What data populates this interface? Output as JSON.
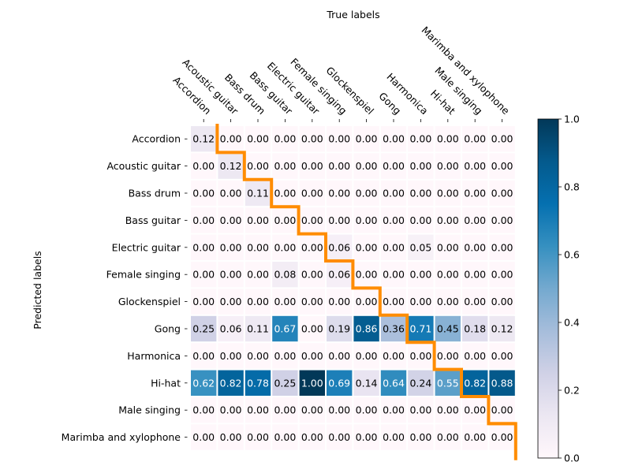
{
  "chart_data": {
    "type": "heatmap",
    "title": "True labels",
    "ylabel": "Predicted labels",
    "xlabel": "",
    "x_categories": [
      "Accordion",
      "Acoustic guitar",
      "Bass drum",
      "Bass guitar",
      "Electric guitar",
      "Female singing",
      "Glockenspiel",
      "Gong",
      "Harmonica",
      "Hi-hat",
      "Male singing",
      "Marimba and xylophone"
    ],
    "y_categories": [
      "Accordion",
      "Acoustic guitar",
      "Bass drum",
      "Bass guitar",
      "Electric guitar",
      "Female singing",
      "Glockenspiel",
      "Gong",
      "Harmonica",
      "Hi-hat",
      "Male singing",
      "Marimba and xylophone"
    ],
    "values": [
      [
        0.12,
        0.0,
        0.0,
        0.0,
        0.0,
        0.0,
        0.0,
        0.0,
        0.0,
        0.0,
        0.0,
        0.0
      ],
      [
        0.0,
        0.12,
        0.0,
        0.0,
        0.0,
        0.0,
        0.0,
        0.0,
        0.0,
        0.0,
        0.0,
        0.0
      ],
      [
        0.0,
        0.0,
        0.11,
        0.0,
        0.0,
        0.0,
        0.0,
        0.0,
        0.0,
        0.0,
        0.0,
        0.0
      ],
      [
        0.0,
        0.0,
        0.0,
        0.0,
        0.0,
        0.0,
        0.0,
        0.0,
        0.0,
        0.0,
        0.0,
        0.0
      ],
      [
        0.0,
        0.0,
        0.0,
        0.0,
        0.0,
        0.06,
        0.0,
        0.0,
        0.05,
        0.0,
        0.0,
        0.0
      ],
      [
        0.0,
        0.0,
        0.0,
        0.08,
        0.0,
        0.06,
        0.0,
        0.0,
        0.0,
        0.0,
        0.0,
        0.0
      ],
      [
        0.0,
        0.0,
        0.0,
        0.0,
        0.0,
        0.0,
        0.0,
        0.0,
        0.0,
        0.0,
        0.0,
        0.0
      ],
      [
        0.25,
        0.06,
        0.11,
        0.67,
        0.0,
        0.19,
        0.86,
        0.36,
        0.71,
        0.45,
        0.18,
        0.12
      ],
      [
        0.0,
        0.0,
        0.0,
        0.0,
        0.0,
        0.0,
        0.0,
        0.0,
        0.0,
        0.0,
        0.0,
        0.0
      ],
      [
        0.62,
        0.82,
        0.78,
        0.25,
        1.0,
        0.69,
        0.14,
        0.64,
        0.24,
        0.55,
        0.82,
        0.88
      ],
      [
        0.0,
        0.0,
        0.0,
        0.0,
        0.0,
        0.0,
        0.0,
        0.0,
        0.0,
        0.0,
        0.0,
        0.0
      ],
      [
        0.0,
        0.0,
        0.0,
        0.0,
        0.0,
        0.0,
        0.0,
        0.0,
        0.0,
        0.0,
        0.0,
        0.0
      ]
    ],
    "value_format": "0.00",
    "colorbar": {
      "range": [
        0.0,
        1.0
      ],
      "ticks": [
        0.0,
        0.2,
        0.4,
        0.6,
        0.8,
        1.0
      ],
      "colormap": "PuBu"
    },
    "annotation_line": {
      "color": "#ff8c00",
      "shape": "staircase along the diagonal"
    },
    "grid": false,
    "cell_border_color": "#ffffff"
  }
}
